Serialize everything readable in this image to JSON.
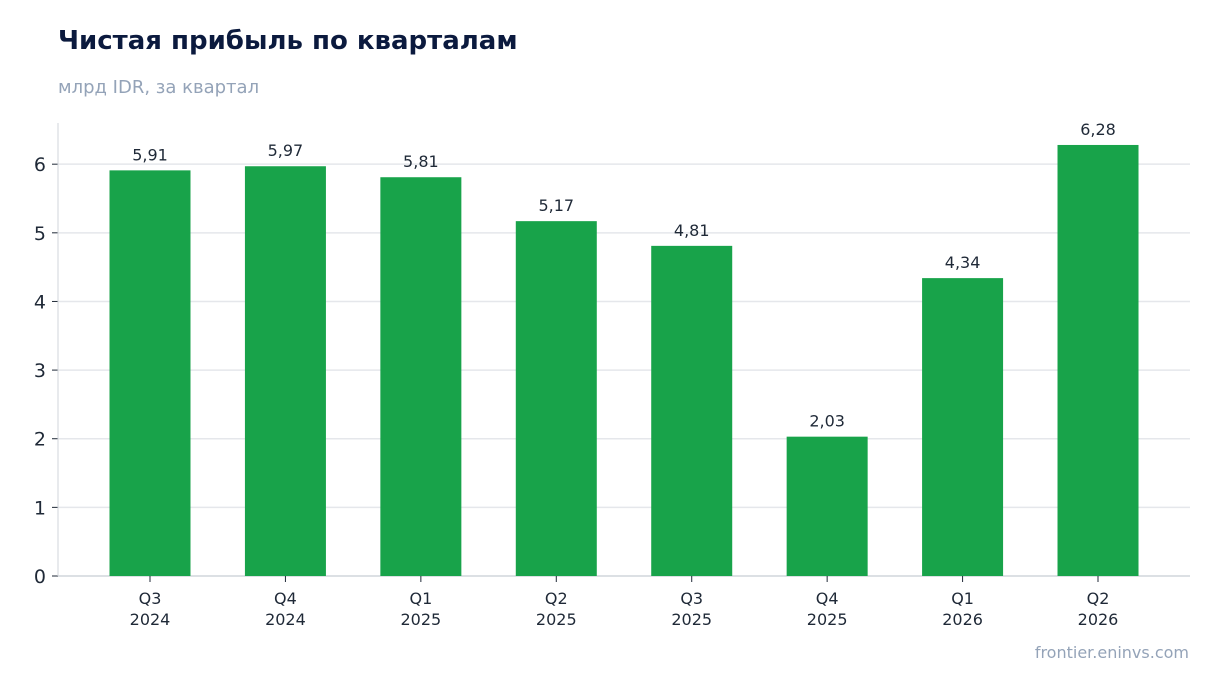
{
  "header": {
    "title": "Чистая прибыль по кварталам",
    "subtitle": "млрд IDR, за квартал"
  },
  "footer": {
    "source": "frontier.eninvs.com"
  },
  "colors": {
    "bar": "#18a34a",
    "grid": "#e5e7eb",
    "axis": "#d1d5db",
    "text": "#1f2937"
  },
  "chart_data": {
    "type": "bar",
    "title": "Чистая прибыль по кварталам",
    "subtitle": "млрд IDR, за квартал",
    "xlabel": "",
    "ylabel": "",
    "categories": [
      [
        "Q3",
        "2024"
      ],
      [
        "Q4",
        "2024"
      ],
      [
        "Q1",
        "2025"
      ],
      [
        "Q2",
        "2025"
      ],
      [
        "Q3",
        "2025"
      ],
      [
        "Q4",
        "2025"
      ],
      [
        "Q1",
        "2026"
      ],
      [
        "Q2",
        "2026"
      ]
    ],
    "values": [
      5.91,
      5.97,
      5.81,
      5.17,
      4.81,
      2.03,
      4.34,
      6.28
    ],
    "value_labels": [
      "5,91",
      "5,97",
      "5,81",
      "5,17",
      "4,81",
      "2,03",
      "4,34",
      "6,28"
    ],
    "ylim": [
      0,
      6.6
    ],
    "yticks": [
      0,
      1,
      2,
      3,
      4,
      5,
      6
    ],
    "grid": true,
    "legend": "none"
  }
}
